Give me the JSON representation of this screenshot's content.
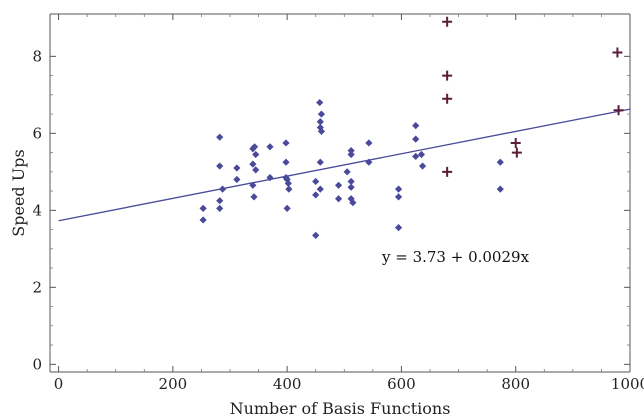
{
  "chart_data": {
    "type": "scatter",
    "title": "",
    "xlabel": "Number of Basis Functions",
    "ylabel": "Speed Ups",
    "xlim": [
      -15,
      1000
    ],
    "ylim": [
      -0.2,
      9.1
    ],
    "xticks": [
      0,
      200,
      400,
      600,
      800,
      1000
    ],
    "yticks": [
      0,
      2,
      4,
      6,
      8
    ],
    "grid": false,
    "annotation": "y = 3.73 + 0.0029x",
    "fit": {
      "intercept": 3.73,
      "slope": 0.0029,
      "x_range": [
        0,
        1000
      ]
    },
    "series": [
      {
        "marker": "diamond",
        "color": "#4a4a9a",
        "points": [
          [
            253,
            4.05
          ],
          [
            253,
            3.75
          ],
          [
            282,
            5.9
          ],
          [
            282,
            5.15
          ],
          [
            282,
            4.25
          ],
          [
            282,
            4.05
          ],
          [
            287,
            4.55
          ],
          [
            312,
            5.1
          ],
          [
            312,
            4.8
          ],
          [
            340,
            5.6
          ],
          [
            340,
            5.2
          ],
          [
            340,
            4.65
          ],
          [
            342,
            4.35
          ],
          [
            343,
            5.65
          ],
          [
            345,
            5.45
          ],
          [
            345,
            5.05
          ],
          [
            370,
            5.65
          ],
          [
            370,
            4.85
          ],
          [
            398,
            5.75
          ],
          [
            398,
            5.25
          ],
          [
            398,
            4.85
          ],
          [
            400,
            4.8
          ],
          [
            402,
            4.7
          ],
          [
            403,
            4.55
          ],
          [
            400,
            4.05
          ],
          [
            450,
            4.75
          ],
          [
            450,
            4.4
          ],
          [
            450,
            3.35
          ],
          [
            457,
            6.8
          ],
          [
            460,
            6.5
          ],
          [
            458,
            6.3
          ],
          [
            458,
            6.15
          ],
          [
            460,
            6.05
          ],
          [
            458,
            5.25
          ],
          [
            458,
            4.55
          ],
          [
            490,
            4.65
          ],
          [
            490,
            4.3
          ],
          [
            505,
            5.0
          ],
          [
            512,
            5.55
          ],
          [
            512,
            5.45
          ],
          [
            512,
            4.75
          ],
          [
            512,
            4.6
          ],
          [
            512,
            4.3
          ],
          [
            515,
            4.2
          ],
          [
            543,
            5.75
          ],
          [
            543,
            5.25
          ],
          [
            595,
            4.55
          ],
          [
            595,
            4.35
          ],
          [
            595,
            3.55
          ],
          [
            625,
            6.2
          ],
          [
            625,
            5.85
          ],
          [
            625,
            5.4
          ],
          [
            635,
            5.45
          ],
          [
            637,
            5.15
          ],
          [
            773,
            5.25
          ],
          [
            773,
            4.55
          ]
        ]
      },
      {
        "marker": "plus",
        "color": "#5a1e3a",
        "points": [
          [
            680,
            8.9
          ],
          [
            680,
            7.5
          ],
          [
            680,
            6.9
          ],
          [
            680,
            5.0
          ],
          [
            800,
            5.75
          ],
          [
            802,
            5.5
          ],
          [
            978,
            8.1
          ],
          [
            980,
            6.6
          ]
        ]
      }
    ]
  }
}
